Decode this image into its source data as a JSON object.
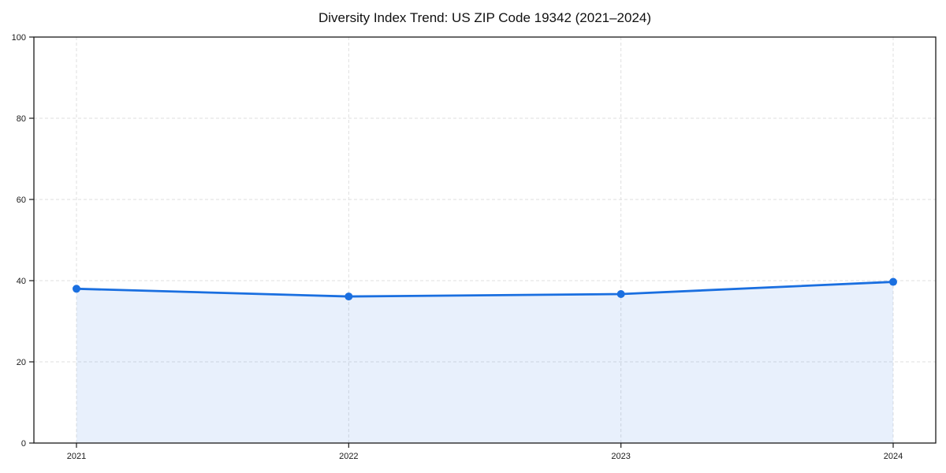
{
  "chart_data": {
    "type": "line",
    "title": "Diversity Index Trend: US ZIP Code 19342 (2021–2024)",
    "x": [
      "2021",
      "2022",
      "2023",
      "2024"
    ],
    "series": [
      {
        "name": "Diversity Index",
        "values": [
          38.0,
          36.1,
          36.7,
          39.7
        ]
      }
    ],
    "xlabel": "",
    "ylabel": "",
    "ylim": [
      0,
      100
    ],
    "yticks": [
      0,
      20,
      40,
      60,
      80,
      100
    ],
    "grid": true,
    "grid_style": "dashed",
    "legend": "none",
    "line_color": "#1a6fe0",
    "fill_color": "#1a6fe0",
    "fill_opacity": 0.1,
    "marker": "circle",
    "grid_color": "#dfdfdf",
    "spine_color": "#1a1a1a"
  }
}
